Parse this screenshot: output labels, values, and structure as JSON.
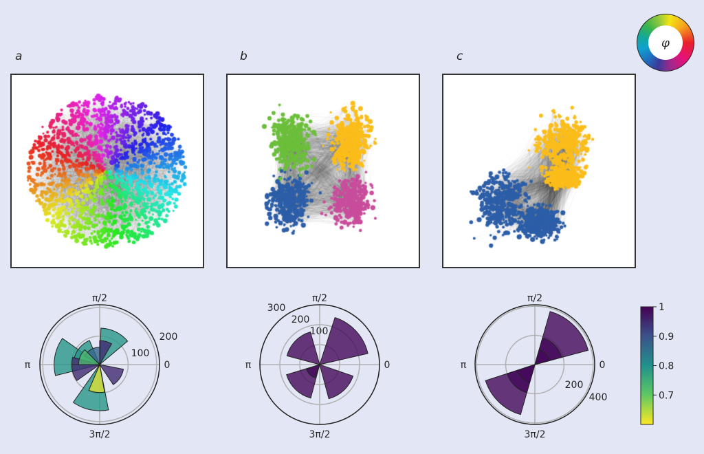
{
  "panels": [
    {
      "label": "a",
      "network_colors": "phase-hue"
    },
    {
      "label": "b",
      "network_colors": [
        "#6bbf3a",
        "#fbbd1a",
        "#2c5ea8",
        "#c94d9c"
      ]
    },
    {
      "label": "c",
      "network_colors": [
        "#fbbd1a",
        "#2c5ea8"
      ]
    }
  ],
  "color_wheel": {
    "symbol": "φ",
    "icon": "phase-color-wheel"
  },
  "chart_data": [
    {
      "type": "polar-bar",
      "panel": "a",
      "angle_ticks": [
        "0",
        "π/2",
        "π",
        "3π/2"
      ],
      "radial_ticks": [
        "100",
        "200"
      ],
      "rmax": 210,
      "grid": true,
      "wedges": [
        {
          "theta_deg": [
            145,
            194
          ],
          "r": 160,
          "value": 0.79
        },
        {
          "theta_deg": [
            235,
            281
          ],
          "r": 162,
          "value": 0.79
        },
        {
          "theta_deg": [
            40,
            88
          ],
          "r": 128,
          "value": 0.79
        },
        {
          "theta_deg": [
            113,
            165
          ],
          "r": 92,
          "value": 0.79
        },
        {
          "theta_deg": [
            165,
            180
          ],
          "r": 98,
          "value": 0.95
        },
        {
          "theta_deg": [
            180,
            215
          ],
          "r": 98,
          "value": 0.95
        },
        {
          "theta_deg": [
            60,
            90
          ],
          "r": 84,
          "value": 0.95
        },
        {
          "theta_deg": [
            304,
            349
          ],
          "r": 85,
          "value": 0.95
        },
        {
          "theta_deg": [
            90,
            150
          ],
          "r": 61,
          "value": 0.87
        },
        {
          "theta_deg": [
            135,
            180
          ],
          "r": 74,
          "value": 0.73
        },
        {
          "theta_deg": [
            247,
            280
          ],
          "r": 98,
          "value": 0.62
        }
      ]
    },
    {
      "type": "polar-bar",
      "panel": "b",
      "angle_ticks": [
        "0",
        "π/2",
        "π",
        "3π/2"
      ],
      "radial_ticks": [
        "100",
        "200",
        "300"
      ],
      "rmax": 300,
      "grid": true,
      "wedges": [
        {
          "theta_deg": [
            13,
            72
          ],
          "r": 248,
          "value": 0.99
        },
        {
          "theta_deg": [
            106,
            165
          ],
          "r": 170,
          "value": 0.99
        },
        {
          "theta_deg": [
            197,
            255
          ],
          "r": 174,
          "value": 0.99
        },
        {
          "theta_deg": [
            285,
            341
          ],
          "r": 177,
          "value": 0.99
        },
        {
          "theta_deg": [
            200,
            250
          ],
          "r": 70,
          "value": 0.99
        }
      ]
    },
    {
      "type": "polar-bar",
      "panel": "c",
      "angle_ticks": [
        "0",
        "π/2",
        "π",
        "3π/2"
      ],
      "radial_ticks": [
        "200",
        "400"
      ],
      "rmax": 410,
      "grid": true,
      "wedges": [
        {
          "theta_deg": [
            15,
            74
          ],
          "r": 378,
          "value": 0.99
        },
        {
          "theta_deg": [
            15,
            74
          ],
          "r": 190,
          "value": 0.99
        },
        {
          "theta_deg": [
            15,
            74
          ],
          "r": 105,
          "value": 0.99
        },
        {
          "theta_deg": [
            198,
            254
          ],
          "r": 356,
          "value": 0.99
        },
        {
          "theta_deg": [
            198,
            254
          ],
          "r": 200,
          "value": 0.99
        },
        {
          "theta_deg": [
            198,
            254
          ],
          "r": 126,
          "value": 0.99
        }
      ]
    }
  ],
  "colorbar": {
    "type": "colorbar",
    "colormap": "viridis-reversed",
    "range": [
      0.6,
      1
    ],
    "ticks": [
      "1",
      "0.9",
      "0.8",
      "0.7"
    ],
    "tick_values": [
      1,
      0.9,
      0.8,
      0.7
    ]
  }
}
